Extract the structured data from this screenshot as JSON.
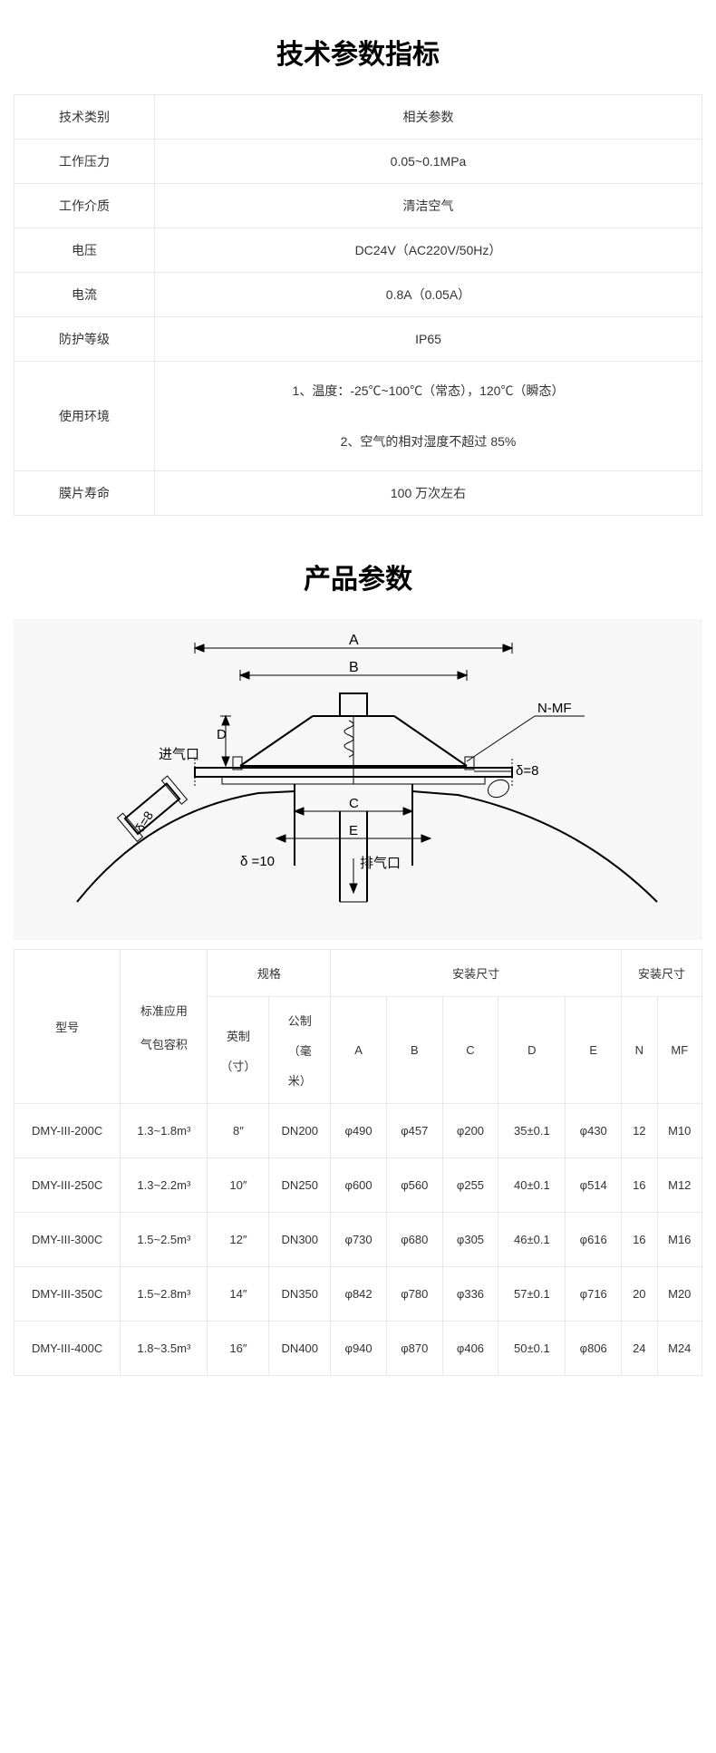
{
  "titles": {
    "tech": "技术参数指标",
    "product": "产品参数"
  },
  "spec_table": {
    "header_category": "技术类别",
    "header_param": "相关参数",
    "rows": [
      {
        "label": "工作压力",
        "value": "0.05~0.1MPa"
      },
      {
        "label": "工作介质",
        "value": "清洁空气"
      },
      {
        "label": "电压",
        "value": "DC24V（AC220V/50Hz）"
      },
      {
        "label": "电流",
        "value": "0.8A（0.05A）"
      },
      {
        "label": "防护等级",
        "value": "IP65"
      }
    ],
    "env_label": "使用环境",
    "env_line1": "1、温度：-25℃~100℃（常态），120℃（瞬态）",
    "env_line2": "2、空气的相对湿度不超过 85%",
    "life_label": "膜片寿命",
    "life_value": "100 万次左右"
  },
  "diagram": {
    "labels": {
      "A": "A",
      "B": "B",
      "C": "C",
      "D": "D",
      "E": "E",
      "nmf": "N-MF",
      "inlet": "进气口",
      "outlet": "排气口",
      "delta8": "δ=8",
      "delta8_left": "δ=8",
      "delta10": "δ =10"
    },
    "colors": {
      "stroke": "#000000",
      "bg": "#f7f7f7"
    }
  },
  "param_table": {
    "headers": {
      "model": "型号",
      "volume_l1": "标准应用",
      "volume_l2": "气包容积",
      "spec": "规格",
      "install_dim": "安装尺寸",
      "install_dim2": "安装尺寸",
      "imperial_l1": "英制",
      "imperial_l2": "（寸）",
      "metric_l1": "公制",
      "metric_l2": "（毫",
      "metric_l3": "米）",
      "A": "A",
      "B": "B",
      "C": "C",
      "D": "D",
      "E": "E",
      "N": "N",
      "MF": "MF"
    },
    "rows": [
      {
        "model": "DMY-III-200C",
        "vol": "1.3~1.8m³",
        "imp": "8″",
        "met": "DN200",
        "A": "φ490",
        "B": "φ457",
        "C": "φ200",
        "D": "35±0.1",
        "E": "φ430",
        "N": "12",
        "MF": "M10"
      },
      {
        "model": "DMY-III-250C",
        "vol": "1.3~2.2m³",
        "imp": "10″",
        "met": "DN250",
        "A": "φ600",
        "B": "φ560",
        "C": "φ255",
        "D": "40±0.1",
        "E": "φ514",
        "N": "16",
        "MF": "M12"
      },
      {
        "model": "DMY-III-300C",
        "vol": "1.5~2.5m³",
        "imp": "12″",
        "met": "DN300",
        "A": "φ730",
        "B": "φ680",
        "C": "φ305",
        "D": "46±0.1",
        "E": "φ616",
        "N": "16",
        "MF": "M16"
      },
      {
        "model": "DMY-III-350C",
        "vol": "1.5~2.8m³",
        "imp": "14″",
        "met": "DN350",
        "A": "φ842",
        "B": "φ780",
        "C": "φ336",
        "D": "57±0.1",
        "E": "φ716",
        "N": "20",
        "MF": "M20"
      },
      {
        "model": "DMY-III-400C",
        "vol": "1.8~3.5m³",
        "imp": "16″",
        "met": "DN400",
        "A": "φ940",
        "B": "φ870",
        "C": "φ406",
        "D": "50±0.1",
        "E": "φ806",
        "N": "24",
        "MF": "M24"
      }
    ]
  }
}
